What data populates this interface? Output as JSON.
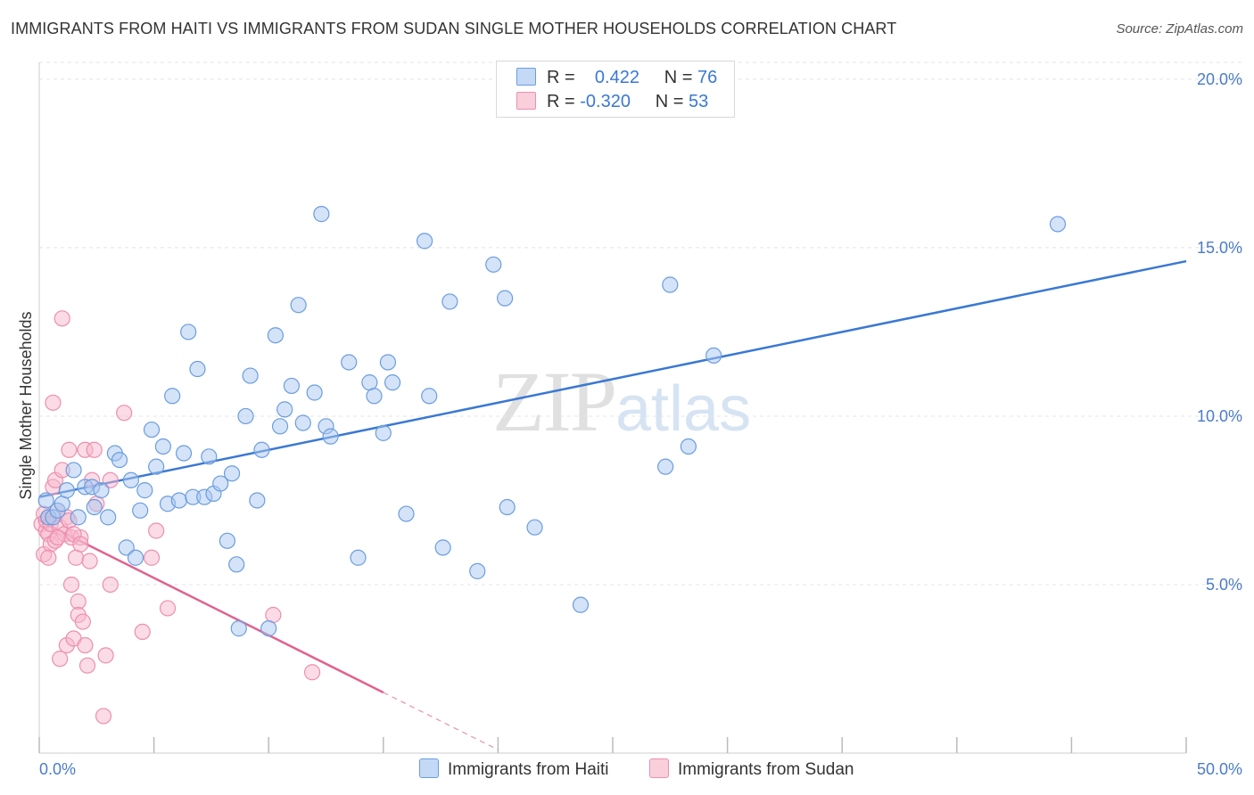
{
  "title": "IMMIGRANTS FROM HAITI VS IMMIGRANTS FROM SUDAN SINGLE MOTHER HOUSEHOLDS CORRELATION CHART",
  "source": "Source: ZipAtlas.com",
  "watermark": {
    "zip": "ZIP",
    "atlas": "atlas"
  },
  "legend": {
    "r_label": "R =",
    "n_label": "N =",
    "haiti": {
      "r": "0.422",
      "n": "76"
    },
    "sudan": {
      "r": "-0.320",
      "n": "53"
    }
  },
  "colors": {
    "haiti_fill": "#a9c8f0",
    "haiti_stroke": "#6b9de0",
    "haiti_line": "#3a78d4",
    "sudan_fill": "#f7b8cb",
    "sudan_stroke": "#ec8fae",
    "sudan_line": "#e0628f",
    "tick_text": "#4a7cc9"
  },
  "chart_data": {
    "type": "scatter",
    "title": "IMMIGRANTS FROM HAITI VS IMMIGRANTS FROM SUDAN SINGLE MOTHER HOUSEHOLDS CORRELATION CHART",
    "xlabel": "",
    "ylabel": "Single Mother Households",
    "xlim": [
      0,
      50
    ],
    "ylim": [
      0,
      20.5
    ],
    "x_tick_labels": [
      "0.0%",
      "50.0%"
    ],
    "y_ticks": [
      5,
      10,
      15,
      20
    ],
    "y_tick_labels": [
      "5.0%",
      "10.0%",
      "15.0%",
      "20.0%"
    ],
    "grid": true,
    "legend_position": "top-center",
    "series": [
      {
        "name": "Immigrants from Haiti",
        "r": 0.422,
        "n": 76,
        "trend": {
          "x": [
            0,
            50
          ],
          "y": [
            7.6,
            14.6
          ]
        },
        "points": [
          [
            0.3,
            7.5
          ],
          [
            0.4,
            7.0
          ],
          [
            0.6,
            7.0
          ],
          [
            0.8,
            7.2
          ],
          [
            1.0,
            7.4
          ],
          [
            1.2,
            7.8
          ],
          [
            1.5,
            8.4
          ],
          [
            1.7,
            7.0
          ],
          [
            2.0,
            7.9
          ],
          [
            2.3,
            7.9
          ],
          [
            2.4,
            7.3
          ],
          [
            2.7,
            7.8
          ],
          [
            3.0,
            7.0
          ],
          [
            3.3,
            8.9
          ],
          [
            3.5,
            8.7
          ],
          [
            3.8,
            6.1
          ],
          [
            4.0,
            8.1
          ],
          [
            4.2,
            5.8
          ],
          [
            4.4,
            7.2
          ],
          [
            4.6,
            7.8
          ],
          [
            4.9,
            9.6
          ],
          [
            5.1,
            8.5
          ],
          [
            5.4,
            9.1
          ],
          [
            5.6,
            7.4
          ],
          [
            5.8,
            10.6
          ],
          [
            6.1,
            7.5
          ],
          [
            6.3,
            8.9
          ],
          [
            6.5,
            12.5
          ],
          [
            6.7,
            7.6
          ],
          [
            6.9,
            11.4
          ],
          [
            7.2,
            7.6
          ],
          [
            7.4,
            8.8
          ],
          [
            7.6,
            7.7
          ],
          [
            7.9,
            8.0
          ],
          [
            8.2,
            6.3
          ],
          [
            8.4,
            8.3
          ],
          [
            8.6,
            5.6
          ],
          [
            8.7,
            3.7
          ],
          [
            9.0,
            10.0
          ],
          [
            9.2,
            11.2
          ],
          [
            9.5,
            7.5
          ],
          [
            9.7,
            9.0
          ],
          [
            10.0,
            3.7
          ],
          [
            10.3,
            12.4
          ],
          [
            10.5,
            9.7
          ],
          [
            10.7,
            10.2
          ],
          [
            11.0,
            10.9
          ],
          [
            11.3,
            13.3
          ],
          [
            11.5,
            9.8
          ],
          [
            12.0,
            10.7
          ],
          [
            12.3,
            16.0
          ],
          [
            12.5,
            9.7
          ],
          [
            12.7,
            9.4
          ],
          [
            13.5,
            11.6
          ],
          [
            13.9,
            5.8
          ],
          [
            14.4,
            11.0
          ],
          [
            14.6,
            10.6
          ],
          [
            15.0,
            9.5
          ],
          [
            15.2,
            11.6
          ],
          [
            15.4,
            11.0
          ],
          [
            16.0,
            7.1
          ],
          [
            16.8,
            15.2
          ],
          [
            17.0,
            10.6
          ],
          [
            17.6,
            6.1
          ],
          [
            17.9,
            13.4
          ],
          [
            19.1,
            5.4
          ],
          [
            19.8,
            14.5
          ],
          [
            20.3,
            13.5
          ],
          [
            20.4,
            7.3
          ],
          [
            21.6,
            6.7
          ],
          [
            23.6,
            4.4
          ],
          [
            27.3,
            8.5
          ],
          [
            27.5,
            13.9
          ],
          [
            28.3,
            9.1
          ],
          [
            29.4,
            11.8
          ],
          [
            44.4,
            15.7
          ]
        ]
      },
      {
        "name": "Immigrants from Sudan",
        "r": -0.32,
        "n": 53,
        "trend": {
          "x": [
            0,
            15
          ],
          "y": [
            6.9,
            1.8
          ]
        },
        "trend_dashed": {
          "x": [
            15,
            20
          ],
          "y": [
            1.8,
            0.1
          ]
        },
        "points": [
          [
            0.1,
            6.8
          ],
          [
            0.2,
            7.1
          ],
          [
            0.2,
            5.9
          ],
          [
            0.3,
            6.6
          ],
          [
            0.3,
            6.9
          ],
          [
            0.4,
            7.0
          ],
          [
            0.4,
            6.5
          ],
          [
            0.5,
            6.2
          ],
          [
            0.5,
            6.8
          ],
          [
            0.6,
            7.9
          ],
          [
            0.6,
            10.4
          ],
          [
            0.7,
            6.3
          ],
          [
            0.7,
            8.1
          ],
          [
            0.8,
            7.2
          ],
          [
            0.9,
            6.7
          ],
          [
            0.9,
            2.8
          ],
          [
            1.0,
            12.9
          ],
          [
            1.0,
            8.4
          ],
          [
            1.1,
            6.5
          ],
          [
            1.2,
            3.2
          ],
          [
            1.2,
            7.0
          ],
          [
            1.3,
            6.9
          ],
          [
            1.3,
            9.0
          ],
          [
            1.4,
            5.0
          ],
          [
            1.4,
            6.4
          ],
          [
            1.5,
            3.4
          ],
          [
            1.6,
            5.8
          ],
          [
            1.7,
            4.5
          ],
          [
            1.7,
            4.1
          ],
          [
            1.8,
            6.4
          ],
          [
            1.9,
            3.9
          ],
          [
            2.0,
            3.2
          ],
          [
            2.0,
            9.0
          ],
          [
            2.1,
            2.6
          ],
          [
            2.2,
            5.7
          ],
          [
            2.3,
            8.1
          ],
          [
            2.4,
            9.0
          ],
          [
            2.5,
            7.4
          ],
          [
            2.8,
            1.1
          ],
          [
            2.9,
            2.9
          ],
          [
            3.1,
            5.0
          ],
          [
            3.1,
            8.1
          ],
          [
            3.7,
            10.1
          ],
          [
            4.5,
            3.6
          ],
          [
            4.9,
            5.8
          ],
          [
            5.1,
            6.6
          ],
          [
            5.6,
            4.3
          ],
          [
            10.2,
            4.1
          ],
          [
            11.9,
            2.4
          ],
          [
            0.4,
            5.8
          ],
          [
            0.8,
            6.4
          ],
          [
            1.5,
            6.5
          ],
          [
            1.8,
            6.2
          ]
        ]
      }
    ]
  }
}
